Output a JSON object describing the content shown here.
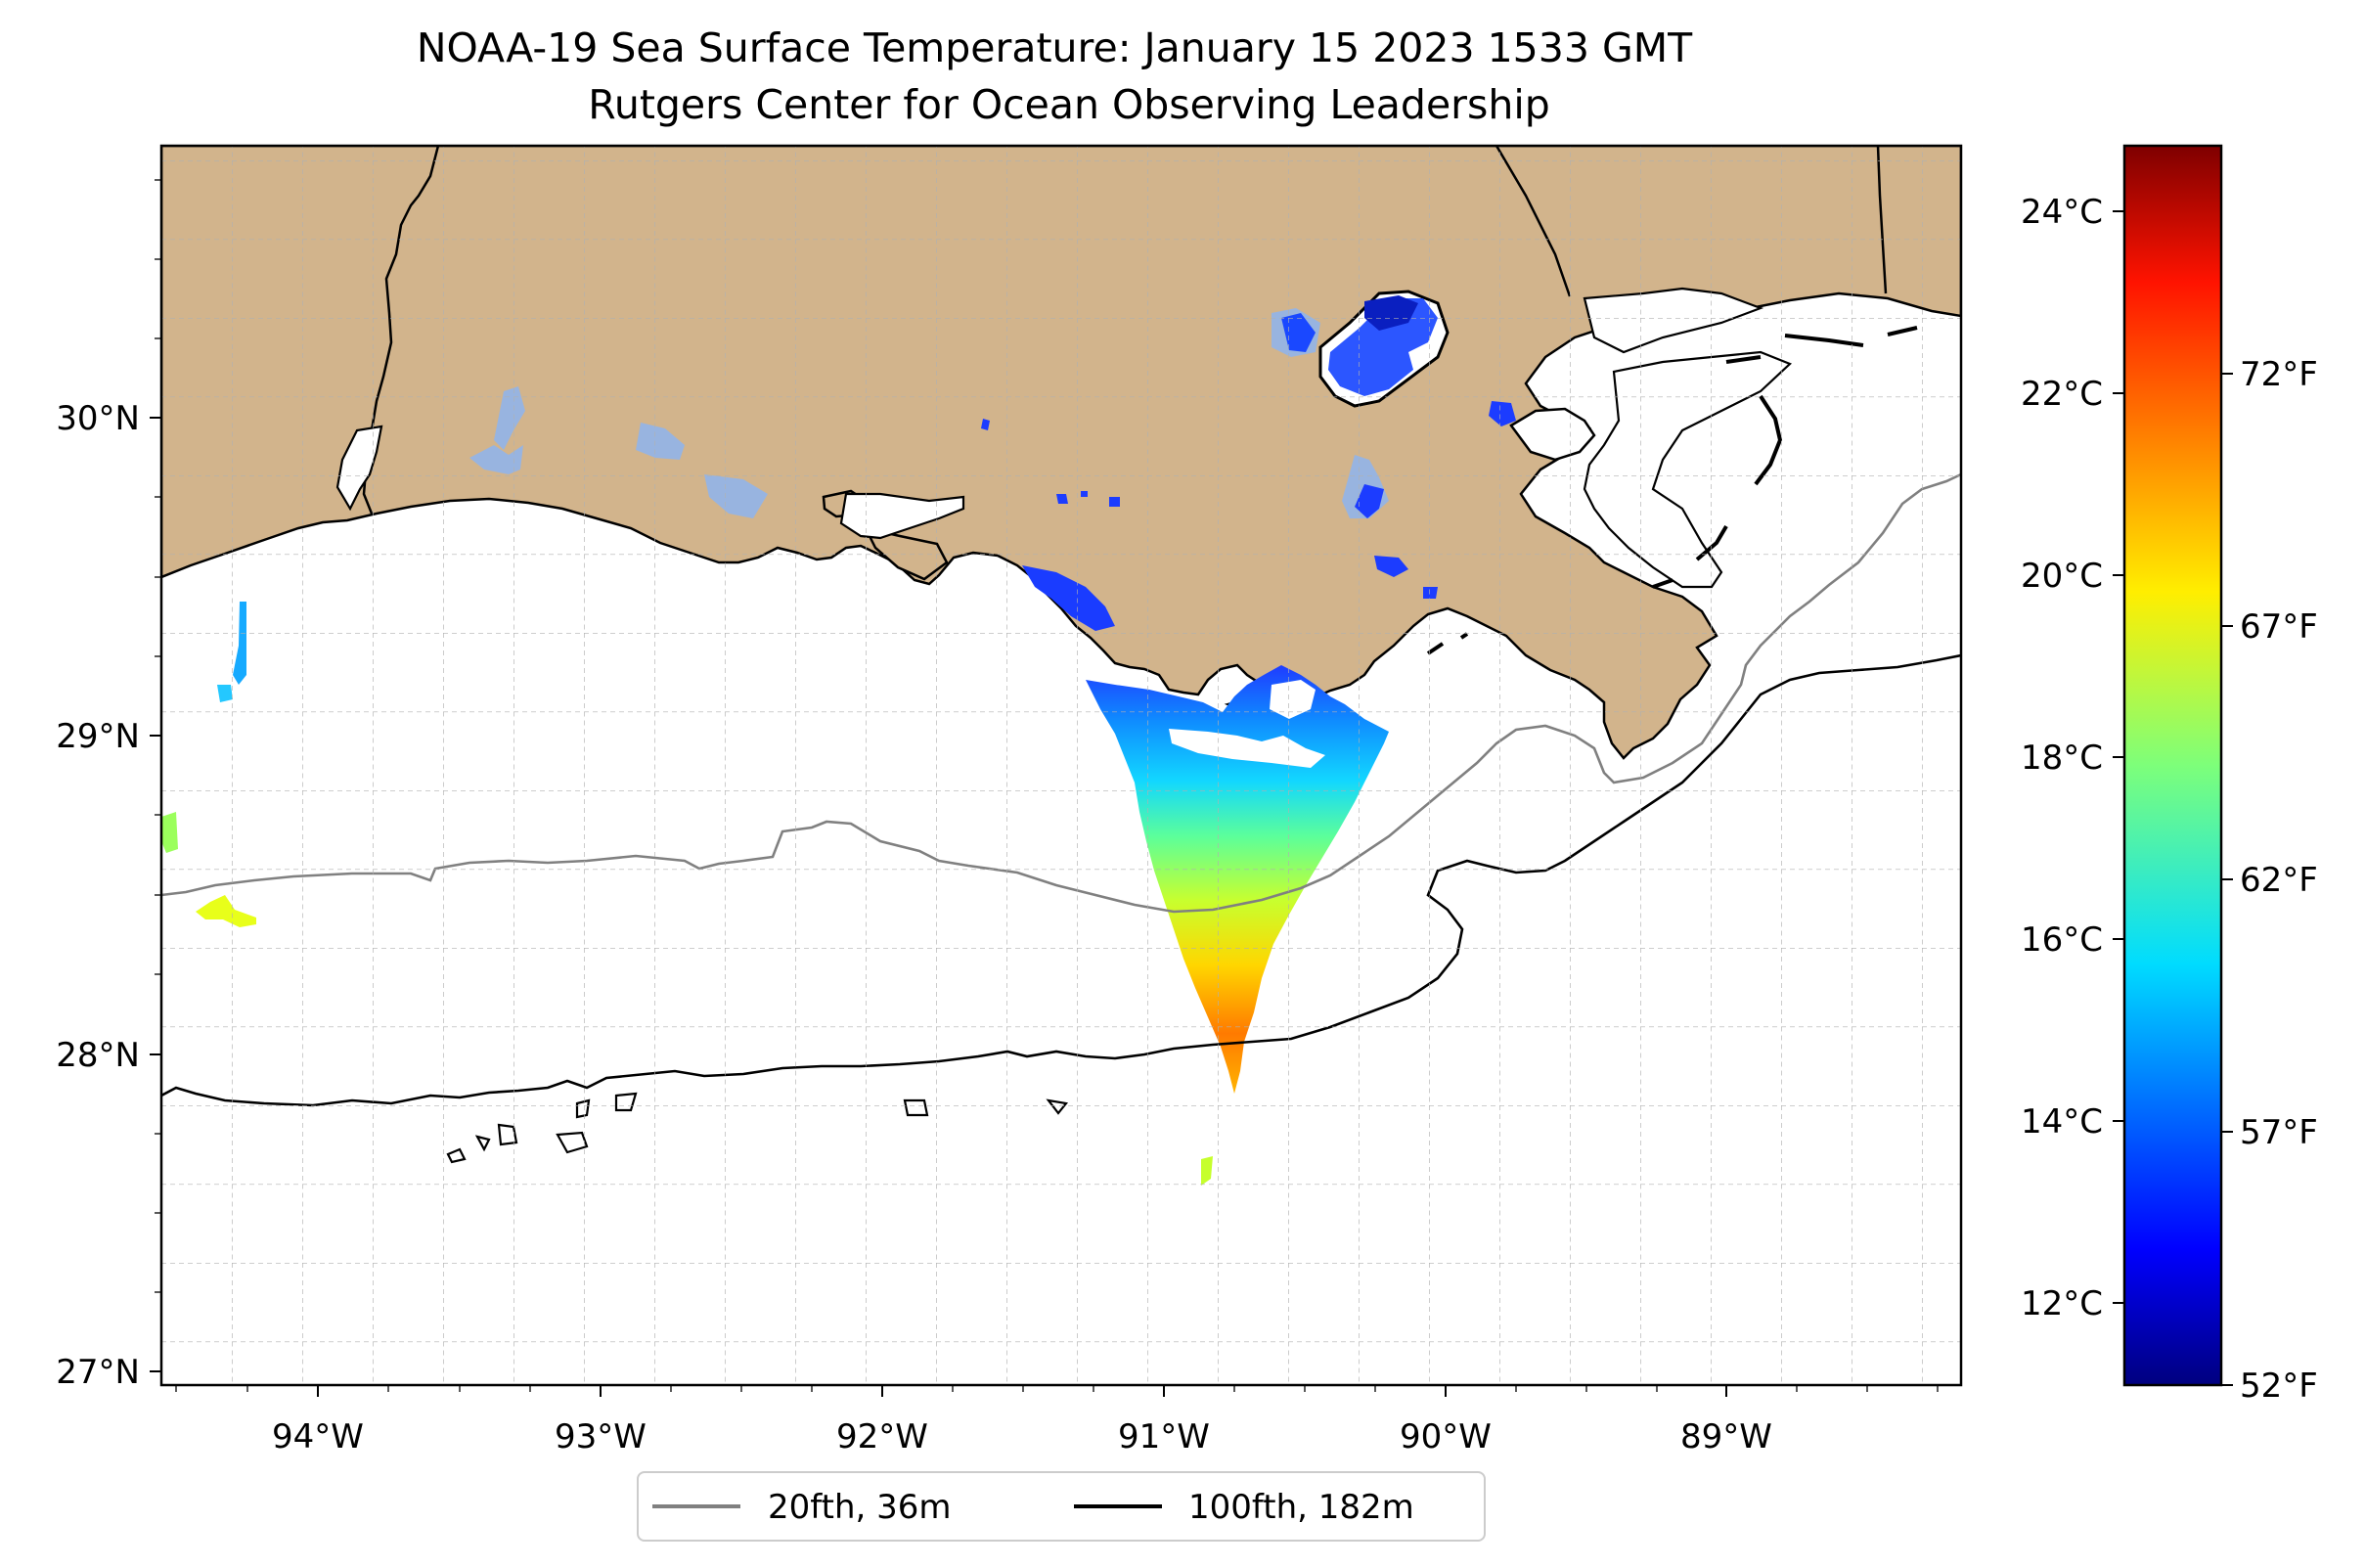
{
  "title": {
    "line1": "NOAA-19 Sea Surface Temperature: January 15 2023 1533 GMT",
    "line2": "Rutgers Center for Ocean Observing Leadership"
  },
  "map": {
    "lon_range": [
      -94.55,
      -88.25
    ],
    "lat_range": [
      26.93,
      30.85
    ],
    "gridlines": true,
    "land_color": "#d2b48c",
    "ocean_color": "#ffffff",
    "lon_ticks": [
      "94°W",
      "93°W",
      "92°W",
      "91°W",
      "90°W",
      "89°W"
    ],
    "lat_ticks": [
      "30°N",
      "29°N",
      "28°N",
      "27°N"
    ]
  },
  "legend": {
    "items": [
      {
        "label": "20fth, 36m",
        "color": "#808080"
      },
      {
        "label": "100fth, 182m",
        "color": "#000000"
      }
    ]
  },
  "colorbar": {
    "colormap": "jet",
    "celsius_ticks": [
      "24°C",
      "22°C",
      "20°C",
      "18°C",
      "16°C",
      "14°C",
      "12°C"
    ],
    "fahrenheit_ticks": [
      "72°F",
      "67°F",
      "62°F",
      "57°F",
      "52°F"
    ]
  }
}
